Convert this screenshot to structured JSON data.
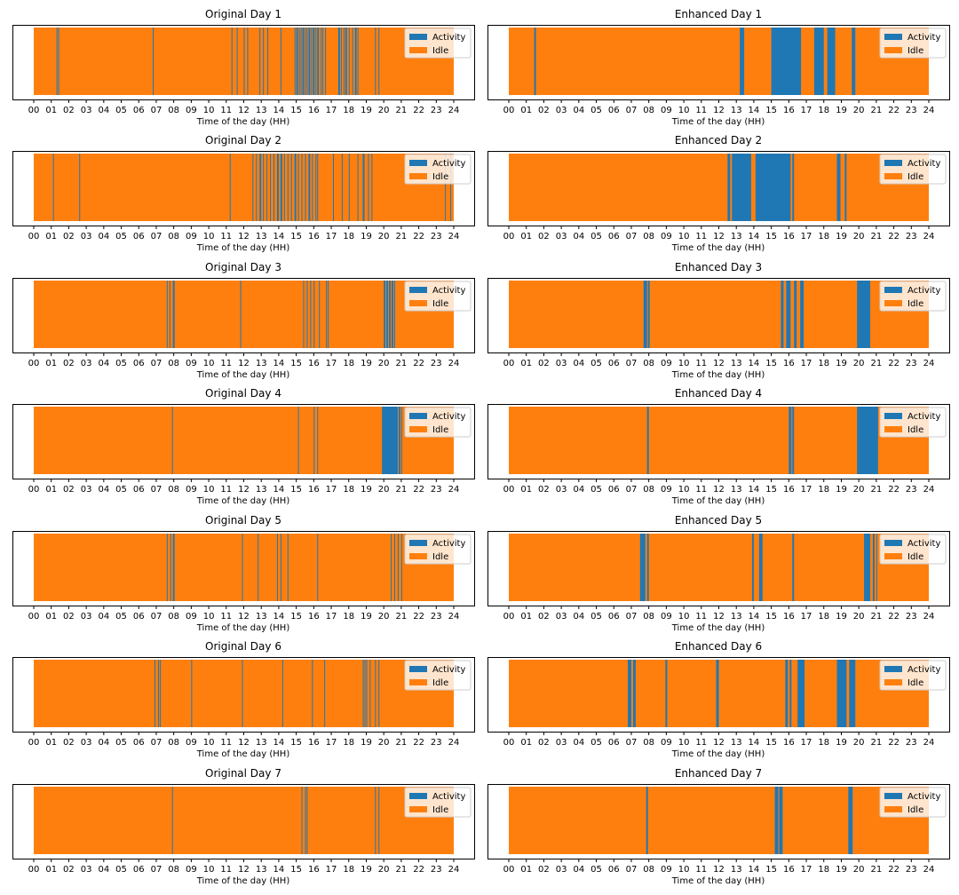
{
  "colors": {
    "activity": "#1f77b4",
    "idle": "#ff7f0e",
    "axes": "#000000",
    "legend_border": "#cccccc"
  },
  "chart_data": [
    {
      "type": "bar",
      "title": "Original Day 1",
      "xlabel": "Time of the day (HH)",
      "ylabel": "",
      "xlim": [
        0,
        24
      ],
      "xticks": [
        "00",
        "01",
        "02",
        "03",
        "04",
        "05",
        "06",
        "07",
        "08",
        "09",
        "10",
        "11",
        "12",
        "13",
        "14",
        "15",
        "16",
        "17",
        "18",
        "19",
        "20",
        "21",
        "22",
        "23",
        "24"
      ],
      "legend": [
        "Activity",
        "Idle"
      ],
      "legend_position": "upper-right",
      "activity_intervals": [
        [
          1.3,
          1.35
        ],
        [
          1.4,
          1.45
        ],
        [
          6.8,
          6.83
        ],
        [
          11.3,
          11.35
        ],
        [
          11.6,
          11.63
        ],
        [
          12.0,
          12.03
        ],
        [
          12.2,
          12.23
        ],
        [
          12.9,
          12.93
        ],
        [
          13.1,
          13.15
        ],
        [
          13.35,
          13.38
        ],
        [
          14.1,
          14.13
        ],
        [
          14.9,
          14.93
        ],
        [
          15.0,
          15.1
        ],
        [
          15.15,
          15.2
        ],
        [
          15.25,
          15.3
        ],
        [
          15.35,
          15.45
        ],
        [
          15.5,
          15.55
        ],
        [
          15.6,
          15.65
        ],
        [
          15.7,
          15.8
        ],
        [
          15.85,
          15.9
        ],
        [
          15.95,
          16.05
        ],
        [
          16.1,
          16.15
        ],
        [
          16.2,
          16.3
        ],
        [
          16.4,
          16.45
        ],
        [
          16.5,
          16.55
        ],
        [
          16.65,
          16.7
        ],
        [
          17.4,
          17.5
        ],
        [
          17.55,
          17.6
        ],
        [
          17.7,
          17.75
        ],
        [
          17.8,
          17.9
        ],
        [
          18.0,
          18.05
        ],
        [
          18.2,
          18.25
        ],
        [
          18.35,
          18.45
        ],
        [
          18.5,
          18.55
        ],
        [
          19.5,
          19.53
        ],
        [
          19.7,
          19.73
        ]
      ]
    },
    {
      "type": "bar",
      "title": "Enhanced Day 1",
      "xlabel": "Time of the day (HH)",
      "ylabel": "",
      "xlim": [
        0,
        24
      ],
      "xticks": [
        "00",
        "01",
        "02",
        "03",
        "04",
        "05",
        "06",
        "07",
        "08",
        "09",
        "10",
        "11",
        "12",
        "13",
        "14",
        "15",
        "16",
        "17",
        "18",
        "19",
        "20",
        "21",
        "22",
        "23",
        "24"
      ],
      "legend": [
        "Activity",
        "Idle"
      ],
      "legend_position": "upper-right",
      "activity_intervals": [
        [
          1.45,
          1.55
        ],
        [
          13.2,
          13.45
        ],
        [
          15.0,
          16.7
        ],
        [
          17.45,
          18.0
        ],
        [
          18.2,
          18.65
        ],
        [
          19.6,
          19.8
        ]
      ]
    },
    {
      "type": "bar",
      "title": "Original Day 2",
      "xlabel": "Time of the day (HH)",
      "ylabel": "",
      "xlim": [
        0,
        24
      ],
      "xticks": [
        "00",
        "01",
        "02",
        "03",
        "04",
        "05",
        "06",
        "07",
        "08",
        "09",
        "10",
        "11",
        "12",
        "13",
        "14",
        "15",
        "16",
        "17",
        "18",
        "19",
        "20",
        "21",
        "22",
        "23",
        "24"
      ],
      "legend": [
        "Activity",
        "Idle"
      ],
      "legend_position": "upper-right",
      "activity_intervals": [
        [
          1.1,
          1.13
        ],
        [
          2.6,
          2.63
        ],
        [
          11.2,
          11.23
        ],
        [
          12.5,
          12.55
        ],
        [
          12.7,
          12.75
        ],
        [
          12.9,
          13.0
        ],
        [
          13.1,
          13.15
        ],
        [
          13.3,
          13.35
        ],
        [
          13.5,
          13.55
        ],
        [
          13.7,
          13.75
        ],
        [
          13.9,
          14.0
        ],
        [
          14.1,
          14.2
        ],
        [
          14.3,
          14.35
        ],
        [
          14.5,
          14.55
        ],
        [
          14.7,
          14.75
        ],
        [
          14.9,
          15.0
        ],
        [
          15.1,
          15.15
        ],
        [
          15.3,
          15.35
        ],
        [
          15.5,
          15.55
        ],
        [
          15.7,
          15.8
        ],
        [
          15.9,
          15.95
        ],
        [
          16.1,
          16.15
        ],
        [
          16.2,
          16.25
        ],
        [
          17.1,
          17.13
        ],
        [
          17.6,
          17.63
        ],
        [
          18.0,
          18.03
        ],
        [
          18.5,
          18.53
        ],
        [
          18.8,
          18.9
        ],
        [
          19.1,
          19.13
        ],
        [
          19.3,
          19.33
        ],
        [
          23.5,
          23.53
        ],
        [
          23.8,
          23.83
        ]
      ]
    },
    {
      "type": "bar",
      "title": "Enhanced Day 2",
      "xlabel": "Time of the day (HH)",
      "ylabel": "",
      "xlim": [
        0,
        24
      ],
      "xticks": [
        "00",
        "01",
        "02",
        "03",
        "04",
        "05",
        "06",
        "07",
        "08",
        "09",
        "10",
        "11",
        "12",
        "13",
        "14",
        "15",
        "16",
        "17",
        "18",
        "19",
        "20",
        "21",
        "22",
        "23",
        "24"
      ],
      "legend": [
        "Activity",
        "Idle"
      ],
      "legend_position": "upper-right",
      "activity_intervals": [
        [
          12.5,
          12.65
        ],
        [
          12.75,
          13.85
        ],
        [
          14.1,
          16.1
        ],
        [
          16.2,
          16.3
        ],
        [
          18.75,
          18.95
        ],
        [
          19.2,
          19.3
        ]
      ]
    },
    {
      "type": "bar",
      "title": "Original Day 3",
      "xlabel": "Time of the day (HH)",
      "ylabel": "",
      "xlim": [
        0,
        24
      ],
      "xticks": [
        "00",
        "01",
        "02",
        "03",
        "04",
        "05",
        "06",
        "07",
        "08",
        "09",
        "10",
        "11",
        "12",
        "13",
        "14",
        "15",
        "16",
        "17",
        "18",
        "19",
        "20",
        "21",
        "22",
        "23",
        "24"
      ],
      "legend": [
        "Activity",
        "Idle"
      ],
      "legend_position": "upper-right",
      "activity_intervals": [
        [
          7.6,
          7.63
        ],
        [
          7.75,
          7.8
        ],
        [
          7.95,
          8.05
        ],
        [
          11.8,
          11.83
        ],
        [
          15.4,
          15.43
        ],
        [
          15.6,
          15.65
        ],
        [
          15.8,
          15.85
        ],
        [
          16.0,
          16.05
        ],
        [
          16.3,
          16.33
        ],
        [
          16.7,
          16.75
        ],
        [
          16.8,
          16.83
        ],
        [
          20.0,
          20.1
        ],
        [
          20.15,
          20.25
        ],
        [
          20.3,
          20.4
        ],
        [
          20.45,
          20.55
        ],
        [
          20.6,
          20.65
        ]
      ]
    },
    {
      "type": "bar",
      "title": "Enhanced Day 3",
      "xlabel": "Time of the day (HH)",
      "ylabel": "",
      "xlim": [
        0,
        24
      ],
      "xticks": [
        "00",
        "01",
        "02",
        "03",
        "04",
        "05",
        "06",
        "07",
        "08",
        "09",
        "10",
        "11",
        "12",
        "13",
        "14",
        "15",
        "16",
        "17",
        "18",
        "19",
        "20",
        "21",
        "22",
        "23",
        "24"
      ],
      "legend": [
        "Activity",
        "Idle"
      ],
      "legend_position": "upper-right",
      "activity_intervals": [
        [
          7.7,
          7.9
        ],
        [
          7.95,
          8.05
        ],
        [
          15.55,
          15.7
        ],
        [
          15.85,
          16.1
        ],
        [
          16.3,
          16.45
        ],
        [
          16.65,
          16.85
        ],
        [
          19.9,
          20.65
        ]
      ]
    },
    {
      "type": "bar",
      "title": "Original Day 4",
      "xlabel": "Time of the day (HH)",
      "ylabel": "",
      "xlim": [
        0,
        24
      ],
      "xticks": [
        "00",
        "01",
        "02",
        "03",
        "04",
        "05",
        "06",
        "07",
        "08",
        "09",
        "10",
        "11",
        "12",
        "13",
        "14",
        "15",
        "16",
        "17",
        "18",
        "19",
        "20",
        "21",
        "22",
        "23",
        "24"
      ],
      "legend": [
        "Activity",
        "Idle"
      ],
      "legend_position": "upper-right",
      "activity_intervals": [
        [
          7.9,
          7.95
        ],
        [
          15.1,
          15.13
        ],
        [
          16.0,
          16.05
        ],
        [
          16.2,
          16.25
        ],
        [
          19.9,
          20.8
        ],
        [
          20.85,
          20.95
        ],
        [
          21.0,
          21.05
        ]
      ]
    },
    {
      "type": "bar",
      "title": "Enhanced Day 4",
      "xlabel": "Time of the day (HH)",
      "ylabel": "",
      "xlim": [
        0,
        24
      ],
      "xticks": [
        "00",
        "01",
        "02",
        "03",
        "04",
        "05",
        "06",
        "07",
        "08",
        "09",
        "10",
        "11",
        "12",
        "13",
        "14",
        "15",
        "16",
        "17",
        "18",
        "19",
        "20",
        "21",
        "22",
        "23",
        "24"
      ],
      "legend": [
        "Activity",
        "Idle"
      ],
      "legend_position": "upper-right",
      "activity_intervals": [
        [
          7.9,
          8.0
        ],
        [
          16.0,
          16.15
        ],
        [
          16.2,
          16.3
        ],
        [
          19.9,
          21.1
        ]
      ]
    },
    {
      "type": "bar",
      "title": "Original Day 5",
      "xlabel": "Time of the day (HH)",
      "ylabel": "",
      "xlim": [
        0,
        24
      ],
      "xticks": [
        "00",
        "01",
        "02",
        "03",
        "04",
        "05",
        "06",
        "07",
        "08",
        "09",
        "10",
        "11",
        "12",
        "13",
        "14",
        "15",
        "16",
        "17",
        "18",
        "19",
        "20",
        "21",
        "22",
        "23",
        "24"
      ],
      "legend": [
        "Activity",
        "Idle"
      ],
      "legend_position": "upper-right",
      "activity_intervals": [
        [
          7.6,
          7.65
        ],
        [
          7.8,
          7.85
        ],
        [
          7.95,
          8.05
        ],
        [
          11.9,
          11.93
        ],
        [
          12.8,
          12.83
        ],
        [
          13.9,
          13.93
        ],
        [
          14.1,
          14.13
        ],
        [
          14.5,
          14.53
        ],
        [
          16.2,
          16.23
        ],
        [
          20.4,
          20.45
        ],
        [
          20.6,
          20.65
        ],
        [
          20.8,
          20.85
        ],
        [
          21.0,
          21.05
        ]
      ]
    },
    {
      "type": "bar",
      "title": "Enhanced Day 5",
      "xlabel": "Time of the day (HH)",
      "ylabel": "",
      "xlim": [
        0,
        24
      ],
      "xticks": [
        "00",
        "01",
        "02",
        "03",
        "04",
        "05",
        "06",
        "07",
        "08",
        "09",
        "10",
        "11",
        "12",
        "13",
        "14",
        "15",
        "16",
        "17",
        "18",
        "19",
        "20",
        "21",
        "22",
        "23",
        "24"
      ],
      "legend": [
        "Activity",
        "Idle"
      ],
      "legend_position": "upper-right",
      "activity_intervals": [
        [
          7.5,
          7.8
        ],
        [
          7.9,
          8.0
        ],
        [
          13.9,
          14.0
        ],
        [
          14.3,
          14.5
        ],
        [
          16.2,
          16.3
        ],
        [
          20.3,
          20.65
        ],
        [
          20.8,
          20.9
        ],
        [
          21.0,
          21.05
        ]
      ]
    },
    {
      "type": "bar",
      "title": "Original Day 6",
      "xlabel": "Time of the day (HH)",
      "ylabel": "",
      "xlim": [
        0,
        24
      ],
      "xticks": [
        "00",
        "01",
        "02",
        "03",
        "04",
        "05",
        "06",
        "07",
        "08",
        "09",
        "10",
        "11",
        "12",
        "13",
        "14",
        "15",
        "16",
        "17",
        "18",
        "19",
        "20",
        "21",
        "22",
        "23",
        "24"
      ],
      "legend": [
        "Activity",
        "Idle"
      ],
      "legend_position": "upper-right",
      "activity_intervals": [
        [
          6.9,
          6.93
        ],
        [
          7.1,
          7.13
        ],
        [
          7.2,
          7.23
        ],
        [
          9.0,
          9.03
        ],
        [
          11.9,
          11.95
        ],
        [
          14.2,
          14.23
        ],
        [
          15.9,
          15.93
        ],
        [
          16.6,
          16.65
        ],
        [
          18.8,
          18.85
        ],
        [
          18.9,
          18.95
        ],
        [
          19.0,
          19.05
        ],
        [
          19.2,
          19.25
        ],
        [
          19.5,
          19.55
        ],
        [
          19.7,
          19.75
        ]
      ]
    },
    {
      "type": "bar",
      "title": "Enhanced Day 6",
      "xlabel": "Time of the day (HH)",
      "ylabel": "",
      "xlim": [
        0,
        24
      ],
      "xticks": [
        "00",
        "01",
        "02",
        "03",
        "04",
        "05",
        "06",
        "07",
        "08",
        "09",
        "10",
        "11",
        "12",
        "13",
        "14",
        "15",
        "16",
        "17",
        "18",
        "19",
        "20",
        "21",
        "22",
        "23",
        "24"
      ],
      "legend": [
        "Activity",
        "Idle"
      ],
      "legend_position": "upper-right",
      "activity_intervals": [
        [
          6.8,
          7.0
        ],
        [
          7.1,
          7.25
        ],
        [
          8.95,
          9.05
        ],
        [
          11.85,
          12.0
        ],
        [
          15.8,
          15.95
        ],
        [
          16.05,
          16.15
        ],
        [
          16.5,
          16.9
        ],
        [
          18.75,
          19.3
        ],
        [
          19.45,
          19.8
        ]
      ]
    },
    {
      "type": "bar",
      "title": "Original Day 7",
      "xlabel": "Time of the day (HH)",
      "ylabel": "",
      "xlim": [
        0,
        24
      ],
      "xticks": [
        "00",
        "01",
        "02",
        "03",
        "04",
        "05",
        "06",
        "07",
        "08",
        "09",
        "10",
        "11",
        "12",
        "13",
        "14",
        "15",
        "16",
        "17",
        "18",
        "19",
        "20",
        "21",
        "22",
        "23",
        "24"
      ],
      "legend": [
        "Activity",
        "Idle"
      ],
      "legend_position": "upper-right",
      "activity_intervals": [
        [
          7.9,
          7.95
        ],
        [
          15.3,
          15.35
        ],
        [
          15.5,
          15.55
        ],
        [
          15.6,
          15.65
        ],
        [
          19.5,
          19.55
        ],
        [
          19.7,
          19.73
        ]
      ]
    },
    {
      "type": "bar",
      "title": "Enhanced Day 7",
      "xlabel": "Time of the day (HH)",
      "ylabel": "",
      "xlim": [
        0,
        24
      ],
      "xticks": [
        "00",
        "01",
        "02",
        "03",
        "04",
        "05",
        "06",
        "07",
        "08",
        "09",
        "10",
        "11",
        "12",
        "13",
        "14",
        "15",
        "16",
        "17",
        "18",
        "19",
        "20",
        "21",
        "22",
        "23",
        "24"
      ],
      "legend": [
        "Activity",
        "Idle"
      ],
      "legend_position": "upper-right",
      "activity_intervals": [
        [
          7.85,
          7.95
        ],
        [
          15.2,
          15.4
        ],
        [
          15.45,
          15.65
        ],
        [
          19.4,
          19.65
        ]
      ]
    }
  ]
}
